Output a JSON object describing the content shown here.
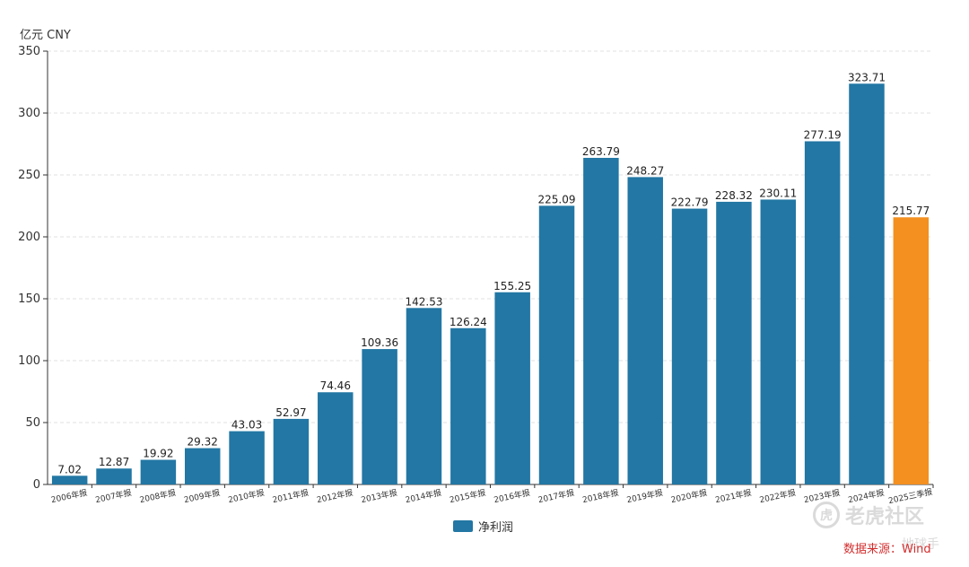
{
  "chart_data": {
    "type": "bar",
    "unit_label": "亿元  CNY",
    "categories": [
      "2006年报",
      "2007年报",
      "2008年报",
      "2009年报",
      "2010年报",
      "2011年报",
      "2012年报",
      "2013年报",
      "2014年报",
      "2015年报",
      "2016年报",
      "2017年报",
      "2018年报",
      "2019年报",
      "2020年报",
      "2021年报",
      "2022年报",
      "2023年报",
      "2024年报",
      "2025三季报"
    ],
    "series": [
      {
        "name": "净利润",
        "values": [
          7.02,
          12.87,
          19.92,
          29.32,
          43.03,
          52.97,
          74.46,
          109.36,
          142.53,
          126.24,
          155.25,
          225.09,
          263.79,
          248.27,
          222.79,
          228.32,
          230.11,
          277.19,
          323.71,
          215.77
        ]
      }
    ],
    "highlight_index": 19,
    "ylim": [
      0,
      350
    ],
    "yticks": [
      0,
      50,
      100,
      150,
      200,
      250,
      300,
      350
    ],
    "grid": true,
    "legend_position": "bottom-center",
    "colors": {
      "bar": "#2277a4",
      "highlight": "#f39020",
      "grid": "#e0e0e0",
      "axis": "#333333"
    }
  },
  "source_note": "数据来源：Wind",
  "watermark": {
    "icon_text": "虎",
    "text": "老虎社区",
    "sub": "地球手"
  }
}
